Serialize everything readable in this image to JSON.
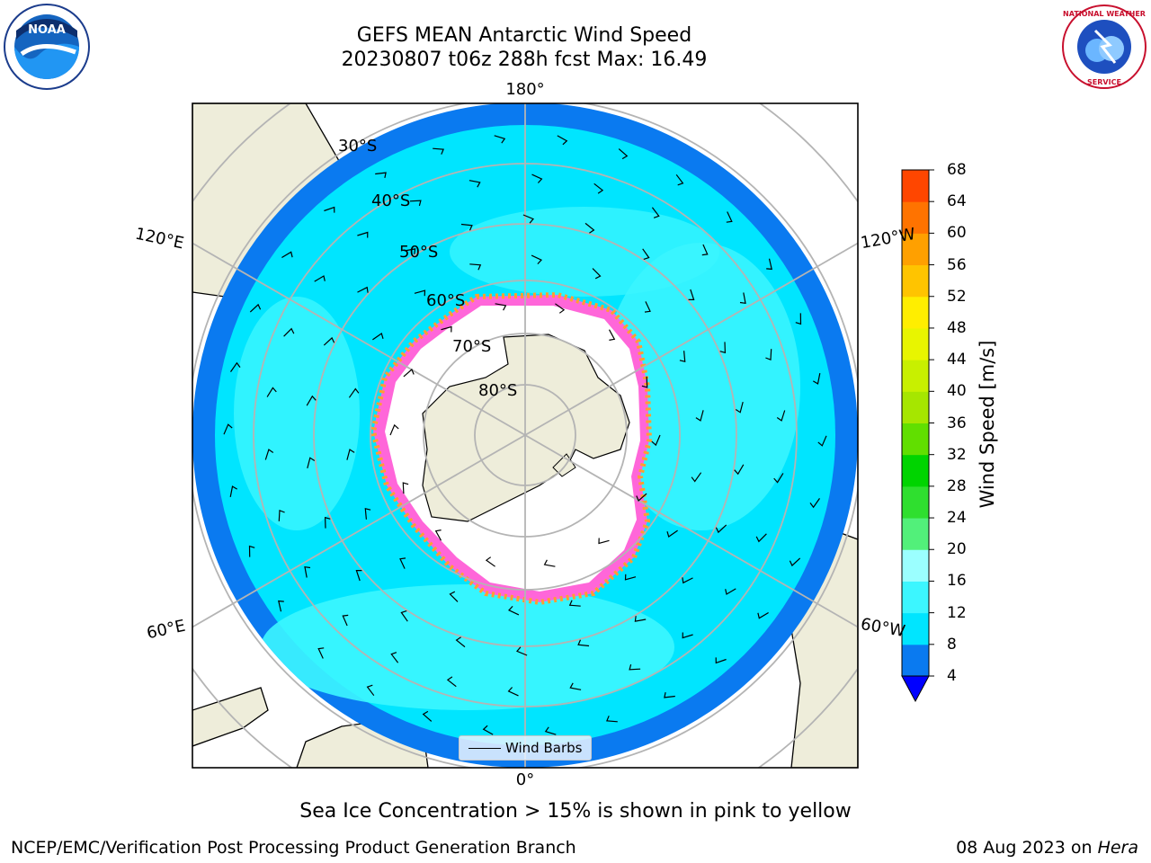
{
  "title_line1": "GEFS MEAN Antarctic Wind Speed",
  "title_line2": "20230807 t06z 288h fcst   Max: 16.49",
  "lon_labels": {
    "top": "180°",
    "bottom": "0°",
    "upper_left": "120°E",
    "lower_left": "60°E",
    "upper_right": "120°W",
    "lower_right": "60°W"
  },
  "lat_labels": [
    "30°S",
    "40°S",
    "50°S",
    "60°S",
    "70°S",
    "80°S"
  ],
  "legend_label": "Wind Barbs",
  "colorbar": {
    "label": "Wind Speed [m/s]",
    "ticks": [
      "4",
      "8",
      "12",
      "16",
      "20",
      "24",
      "28",
      "32",
      "36",
      "40",
      "44",
      "48",
      "52",
      "56",
      "60",
      "64",
      "68"
    ],
    "colors": [
      "#0a7af0",
      "#00e5ff",
      "#3cf6ff",
      "#9bffff",
      "#52f07a",
      "#2fdf2f",
      "#00d400",
      "#61df00",
      "#a6e600",
      "#c8f000",
      "#e8f500",
      "#ffee00",
      "#ffc400",
      "#ffa000",
      "#ff7300",
      "#ff4600"
    ],
    "under_color": "#0000ff"
  },
  "sea_ice_note": "Sea Ice Concentration > 15% is shown in pink to yellow",
  "footer_left": "NCEP/EMC/Verification Post Processing Product Generation Branch",
  "footer_date": "08 Aug 2023 on ",
  "footer_host": "Hera",
  "logos": {
    "noaa_text": "NOAA",
    "nws_text": "NATIONAL WEATHER SERVICE"
  }
}
